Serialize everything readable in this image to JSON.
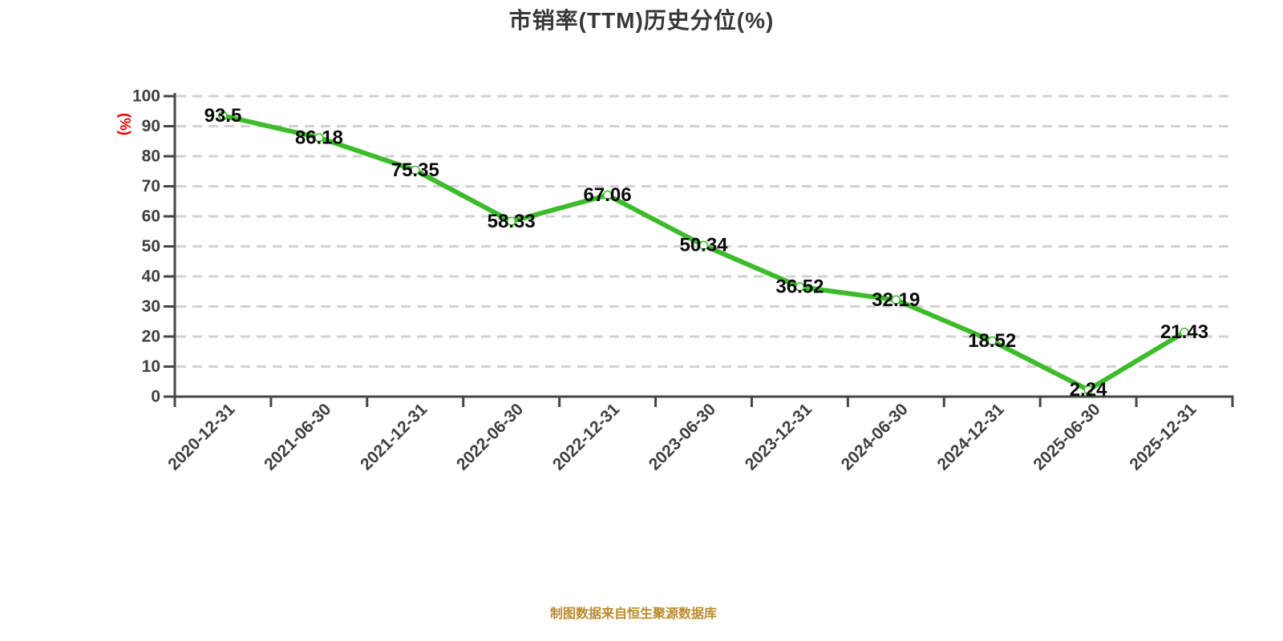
{
  "title": "市销率(TTM)历史分位(%)",
  "y_axis_unit": "(%)",
  "footer": "制图数据来自恒生聚源数据库",
  "colors": {
    "line": "#3cbc2a",
    "marker_fill": "#ffffff",
    "grid": "#d2d2d2",
    "axis": "#454545",
    "axis_label": "#3f3f3f",
    "data_label": "#0a0a0a",
    "title": "#373737",
    "unit": "#e60000",
    "footer": "#ba8b2a"
  },
  "chart_data": {
    "type": "line",
    "title": "市销率(TTM)历史分位(%)",
    "categories": [
      "2020-12-31",
      "2021-06-30",
      "2021-12-31",
      "2022-06-30",
      "2022-12-31",
      "2023-06-30",
      "2023-12-31",
      "2024-06-30",
      "2024-12-31",
      "2025-06-30",
      "2025-12-31"
    ],
    "values": [
      93.5,
      86.18,
      75.35,
      58.33,
      67.06,
      50.34,
      36.52,
      32.19,
      18.52,
      2.24,
      21.43
    ],
    "xlabel": "",
    "ylabel": "(%)",
    "ylim": [
      0,
      100
    ],
    "ytick_step": 10,
    "grid": "horizontal-dashed",
    "legend": "none",
    "data_labels": "shown-at-points",
    "x_label_rotation": -45
  }
}
